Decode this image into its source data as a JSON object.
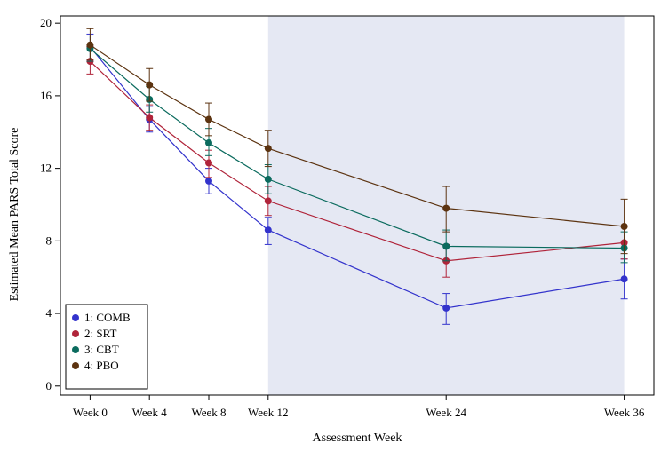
{
  "chart_data": {
    "type": "line",
    "title": "",
    "xlabel": "Assessment Week",
    "ylabel": "Estimated Mean PARS Total Score",
    "x": [
      0,
      4,
      8,
      12,
      24,
      36
    ],
    "x_tick_labels": [
      "Week 0",
      "Week 4",
      "Week 8",
      "Week 12",
      "Week 24",
      "Week 36"
    ],
    "xlim": [
      -2,
      38
    ],
    "ylim": [
      -0.5,
      20.4
    ],
    "y_ticks": [
      0,
      4,
      8,
      12,
      16,
      20
    ],
    "y_tick_labels": [
      "0",
      "4",
      "8",
      "12",
      "16",
      "20"
    ],
    "shaded_region": {
      "x_start": 12,
      "x_end": 36,
      "color": "#e5e8f3"
    },
    "legend_position": "bottom-left",
    "series": [
      {
        "name": "1: COMB",
        "color": "#3333cc",
        "values": [
          18.7,
          14.7,
          11.3,
          8.6,
          4.3,
          5.9
        ],
        "error_low": [
          18.0,
          14.0,
          10.6,
          7.8,
          3.4,
          4.8
        ],
        "error_high": [
          19.4,
          15.4,
          12.0,
          9.3,
          5.1,
          7.0
        ]
      },
      {
        "name": "2: SRT",
        "color": "#b0243a",
        "values": [
          17.9,
          14.8,
          12.3,
          10.2,
          6.9,
          7.9
        ],
        "error_low": [
          17.2,
          14.1,
          11.5,
          9.4,
          6.0,
          7.0
        ],
        "error_high": [
          18.7,
          15.5,
          13.0,
          11.0,
          7.8,
          8.8
        ]
      },
      {
        "name": "3: CBT",
        "color": "#0b6b5e",
        "values": [
          18.6,
          15.8,
          13.4,
          11.4,
          7.7,
          7.6
        ],
        "error_low": [
          17.9,
          15.1,
          12.7,
          10.6,
          6.9,
          6.8
        ],
        "error_high": [
          19.3,
          16.5,
          14.2,
          12.2,
          8.6,
          8.5
        ]
      },
      {
        "name": "4: PBO",
        "color": "#5c3310",
        "values": [
          18.8,
          16.6,
          14.7,
          13.1,
          9.8,
          8.8
        ],
        "error_low": [
          18.0,
          15.7,
          13.8,
          12.1,
          8.5,
          7.3
        ],
        "error_high": [
          19.7,
          17.5,
          15.6,
          14.1,
          11.0,
          10.3
        ]
      }
    ]
  }
}
